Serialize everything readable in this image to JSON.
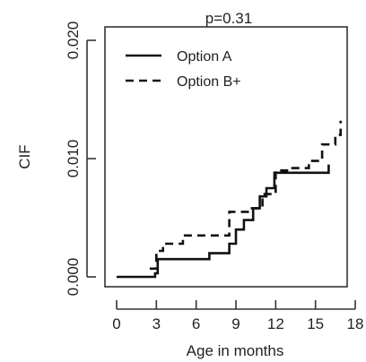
{
  "chart_data": {
    "type": "line",
    "step": true,
    "title": "p=0.31",
    "xlabel": "Age in months",
    "ylabel": "CIF",
    "xlim": [
      0,
      18
    ],
    "ylim": [
      0,
      0.02
    ],
    "xticks": [
      0,
      3,
      6,
      9,
      12,
      15,
      18
    ],
    "yticks": [
      0.0,
      0.01,
      0.02
    ],
    "ytick_labels": [
      "0.000",
      "0.010",
      "0.020"
    ],
    "grid": false,
    "legend_position": "top-left",
    "series": [
      {
        "name": "Option A",
        "line_style": "solid",
        "color": "#111111",
        "x": [
          0,
          2.9,
          3.1,
          6.0,
          7.0,
          8.5,
          9.0,
          9.6,
          10.3,
          10.8,
          11.3,
          11.9,
          12.2,
          16.0
        ],
        "y": [
          0,
          0.0003,
          0.0015,
          0.0015,
          0.002,
          0.0028,
          0.004,
          0.0048,
          0.0058,
          0.0068,
          0.0075,
          0.0088,
          0.0088,
          0.0095
        ]
      },
      {
        "name": "Option B+",
        "line_style": "dashed",
        "color": "#111111",
        "x": [
          2.5,
          3.0,
          3.5,
          5.0,
          7.5,
          8.5,
          10.0,
          11.0,
          12.0,
          13.0,
          14.5,
          15.5,
          16.5,
          16.9
        ],
        "y": [
          0.0007,
          0.0022,
          0.0028,
          0.0035,
          0.0035,
          0.0055,
          0.0058,
          0.007,
          0.009,
          0.0092,
          0.0098,
          0.0112,
          0.012,
          0.0132
        ]
      }
    ]
  }
}
